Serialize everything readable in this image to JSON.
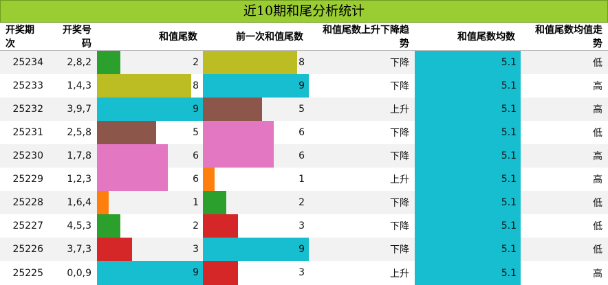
{
  "title": "近10期和尾分析统计",
  "headers": {
    "period": "开奖期次",
    "numbers": "开奖号码",
    "sum_tail": "和值尾数",
    "prev_tail": "前一次和值尾数",
    "trend": "和值尾数上升下降趋势",
    "avg": "和值尾数均数",
    "avg_trend": "和值尾数均值走势"
  },
  "colors": {
    "0": "#ffffff",
    "1": "#ff7f0e",
    "2": "#2ca02c",
    "3": "#d62728",
    "5": "#8c564b",
    "6": "#e377c2",
    "8": "#bcbd22",
    "9": "#17becf"
  },
  "rows": [
    {
      "period": "25234",
      "numbers": "2,8,2",
      "sum_tail": 2,
      "prev_tail": 8,
      "trend": "下降",
      "avg": "5.1",
      "avg_trend": "低"
    },
    {
      "period": "25233",
      "numbers": "1,4,3",
      "sum_tail": 8,
      "prev_tail": 9,
      "trend": "下降",
      "avg": "5.1",
      "avg_trend": "高"
    },
    {
      "period": "25232",
      "numbers": "3,9,7",
      "sum_tail": 9,
      "prev_tail": 5,
      "trend": "上升",
      "avg": "5.1",
      "avg_trend": "高"
    },
    {
      "period": "25231",
      "numbers": "2,5,8",
      "sum_tail": 5,
      "prev_tail": 6,
      "trend": "下降",
      "avg": "5.1",
      "avg_trend": "低"
    },
    {
      "period": "25230",
      "numbers": "1,7,8",
      "sum_tail": 6,
      "prev_tail": 6,
      "trend": "下降",
      "avg": "5.1",
      "avg_trend": "高"
    },
    {
      "period": "25229",
      "numbers": "1,2,3",
      "sum_tail": 6,
      "prev_tail": 1,
      "trend": "上升",
      "avg": "5.1",
      "avg_trend": "高"
    },
    {
      "period": "25228",
      "numbers": "1,6,4",
      "sum_tail": 1,
      "prev_tail": 2,
      "trend": "下降",
      "avg": "5.1",
      "avg_trend": "低"
    },
    {
      "period": "25227",
      "numbers": "4,5,3",
      "sum_tail": 2,
      "prev_tail": 3,
      "trend": "下降",
      "avg": "5.1",
      "avg_trend": "低"
    },
    {
      "period": "25226",
      "numbers": "3,7,3",
      "sum_tail": 3,
      "prev_tail": 9,
      "trend": "下降",
      "avg": "5.1",
      "avg_trend": "低"
    },
    {
      "period": "25225",
      "numbers": "0,0,9",
      "sum_tail": 9,
      "prev_tail": 3,
      "trend": "上升",
      "avg": "5.1",
      "avg_trend": "高"
    }
  ]
}
